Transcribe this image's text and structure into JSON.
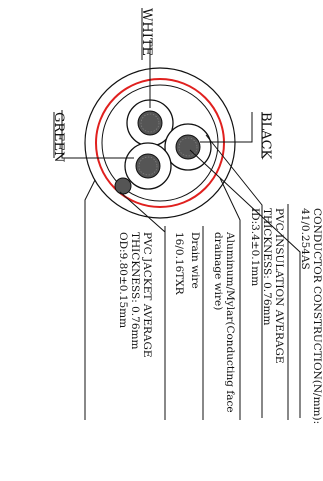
{
  "labels": {
    "white": "WHITE",
    "green": "GREEN",
    "black": "BLACK"
  },
  "specs": [
    {
      "lines": [
        "CONDUCTOR CONSTRUCTION(N/mm):",
        "41/0.254AS"
      ]
    },
    {
      "lines": [
        "PVC INSULATION AVERAGE",
        "THICKNESS: 0.76mm",
        "ID:3.4±0.1mm"
      ]
    },
    {
      "lines": [
        "Aluminum/Mylar(Conducting face",
        "drainage wire)"
      ]
    },
    {
      "lines": [
        "Drain wire",
        "16/0.16TXR"
      ]
    },
    {
      "lines": [
        "PVC JACKET AVERAGE",
        "THICKNESS: 0.76mm",
        "OD:9.80±0.15mm"
      ]
    }
  ],
  "colors": {
    "line": "#111111",
    "shield": "#e0201e",
    "conductor_fill": "#555555"
  }
}
